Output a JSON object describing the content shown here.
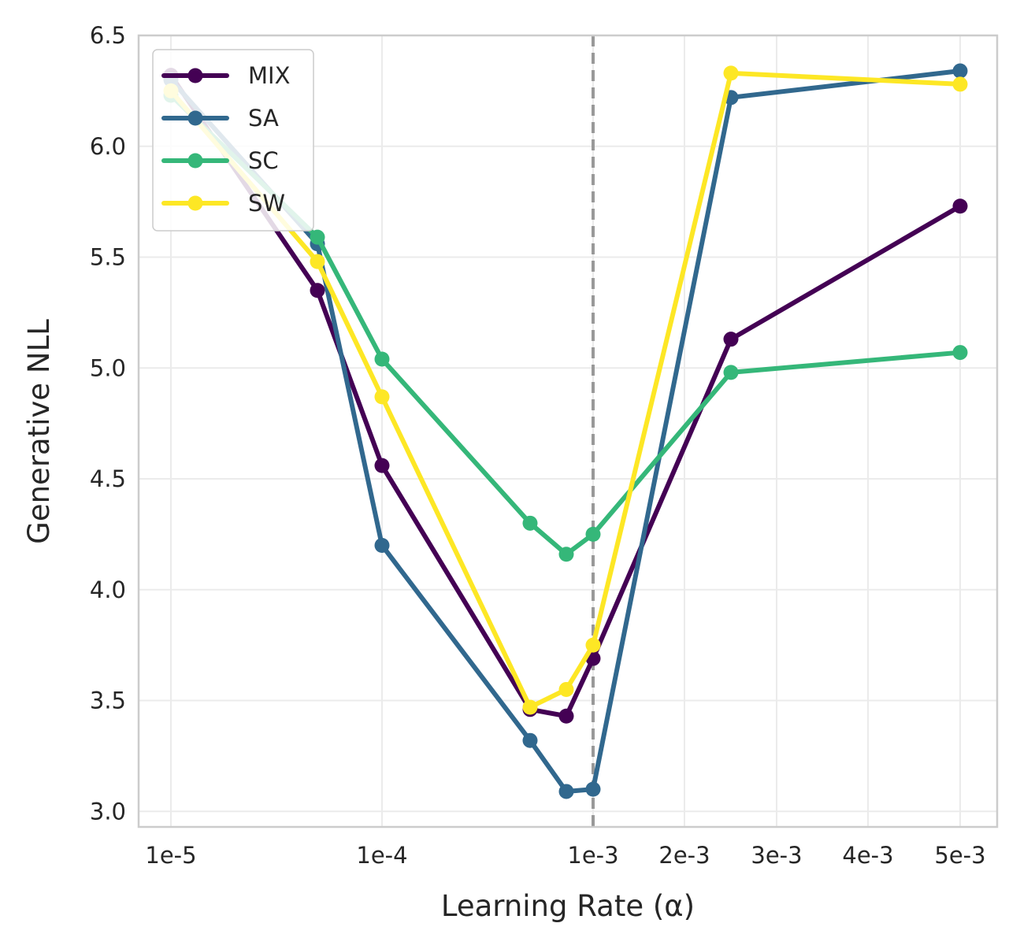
{
  "chart_data": {
    "type": "line",
    "title": "",
    "xlabel": "Learning Rate (α)",
    "ylabel": "Generative NLL",
    "x_tick_labels": [
      "1e-5",
      "1e-4",
      "1e-3",
      "2e-3",
      "3e-3",
      "4e-3",
      "5e-3"
    ],
    "y_ticks": [
      3.0,
      3.5,
      4.0,
      4.5,
      5.0,
      5.5,
      6.0,
      6.5
    ],
    "y_tick_labels": [
      "3.0",
      "3.5",
      "4.0",
      "4.5",
      "5.0",
      "5.5",
      "6.0",
      "6.5"
    ],
    "ylim": [
      2.93,
      6.5
    ],
    "grid": true,
    "reference_line": {
      "x_label": "1e-3",
      "style": "dashed",
      "color": "#999999"
    },
    "legend_position": "upper-left",
    "x_points": [
      "1e-5",
      "5e-5",
      "1e-4",
      "5e-4",
      "7e-4",
      "1e-3",
      "2.5e-3",
      "5e-3"
    ],
    "series": [
      {
        "name": "MIX",
        "color": "#440154",
        "values": [
          6.32,
          5.35,
          4.56,
          3.46,
          3.43,
          3.69,
          5.13,
          5.73
        ]
      },
      {
        "name": "SA",
        "color": "#31688e",
        "values": [
          6.3,
          5.56,
          4.2,
          3.32,
          3.09,
          3.1,
          6.22,
          6.34
        ]
      },
      {
        "name": "SC",
        "color": "#35b779",
        "values": [
          6.23,
          5.59,
          5.04,
          4.3,
          4.16,
          4.25,
          4.98,
          5.07
        ]
      },
      {
        "name": "SW",
        "color": "#fde725",
        "values": [
          6.25,
          5.48,
          4.87,
          3.47,
          3.55,
          3.75,
          6.33,
          6.28
        ]
      }
    ]
  }
}
